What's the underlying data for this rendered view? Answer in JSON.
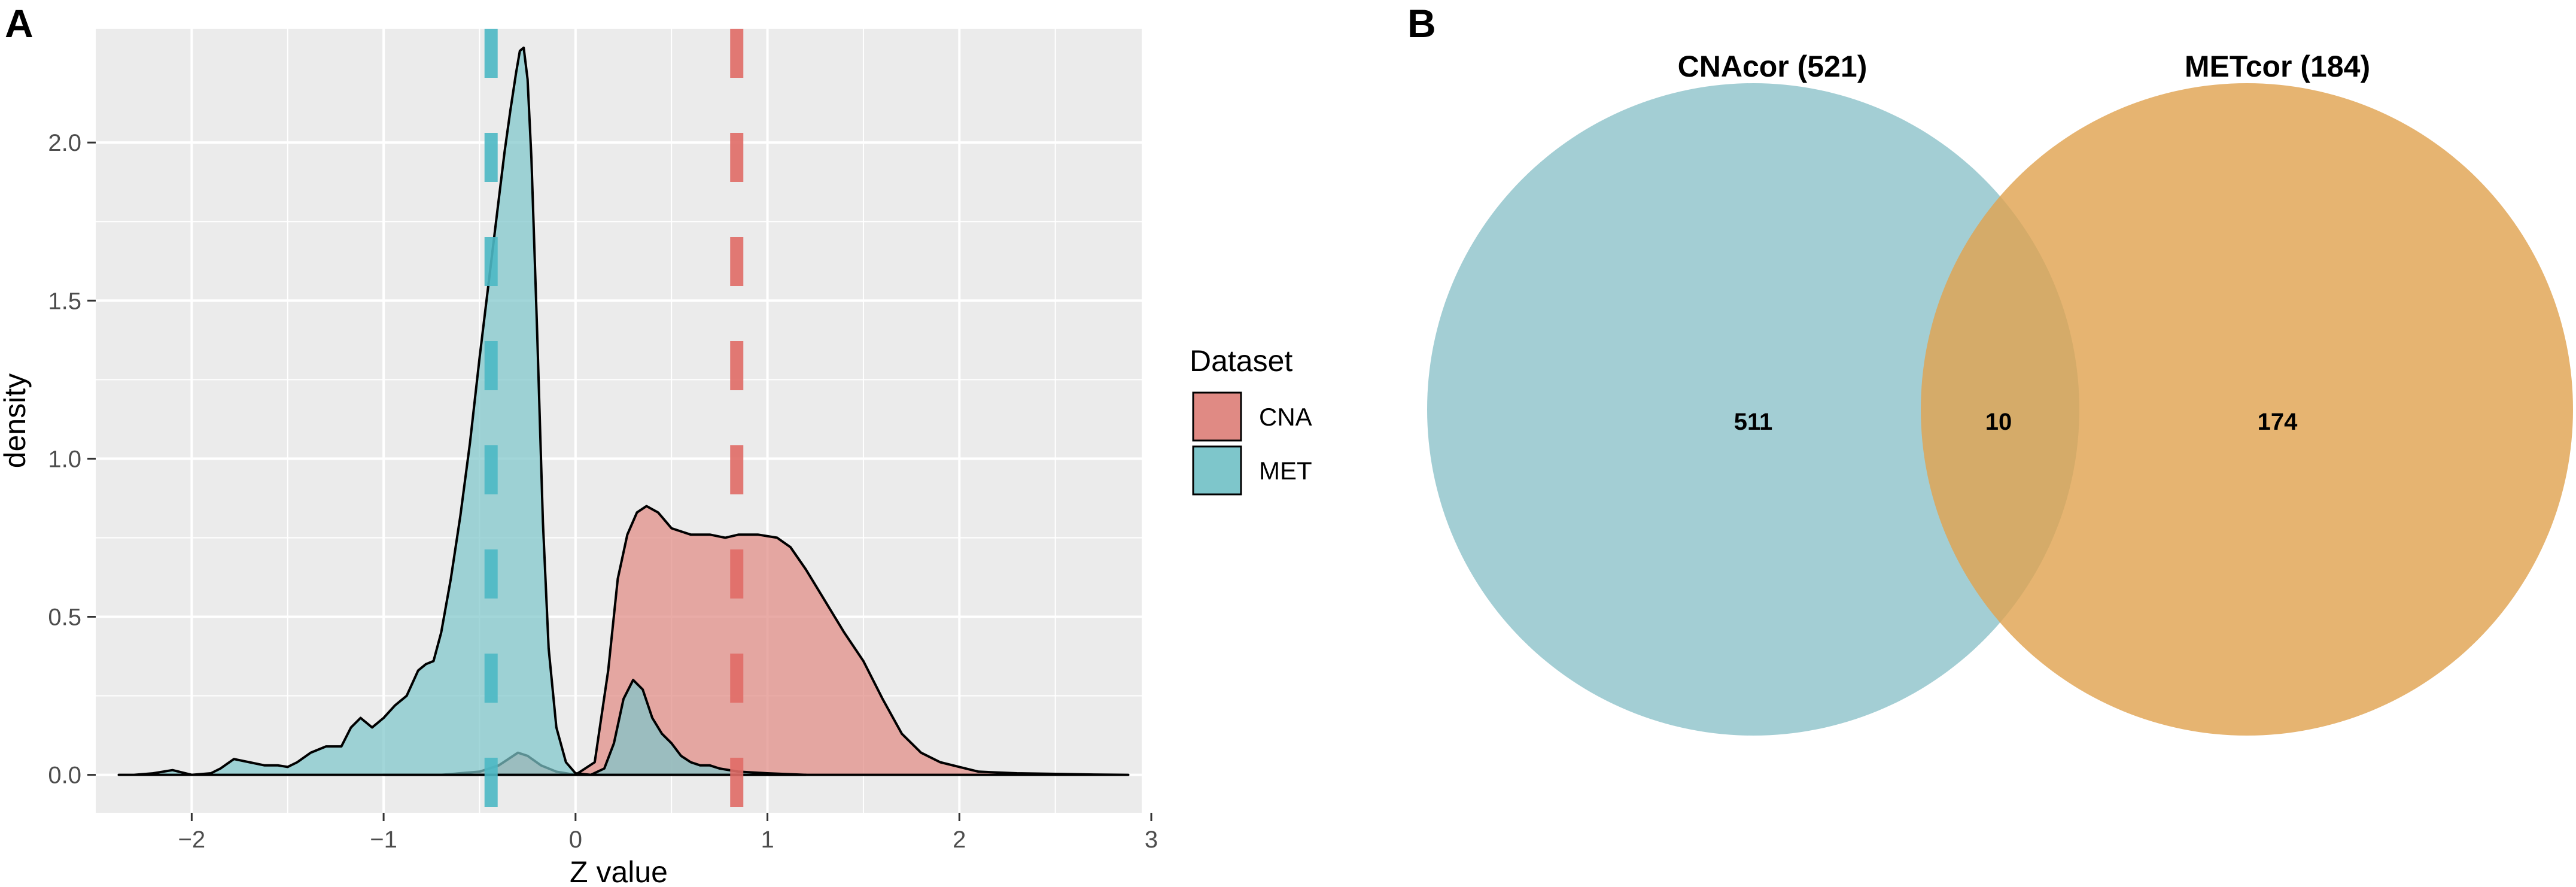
{
  "panel_labels": {
    "a": "A",
    "b": "B"
  },
  "colors": {
    "panel_bg": "#ebebeb",
    "grid": "#ffffff",
    "cna": "#e08a84",
    "met": "#7ec6cb",
    "cna_line": "#e06c66",
    "met_line": "#4db8c4",
    "venn_left": "#8fc3ca",
    "venn_right": "#e0a452"
  },
  "chart_data": [
    {
      "type": "density",
      "xlabel": "Z value",
      "ylabel": "density",
      "xlim": [
        -2.5,
        2.95
      ],
      "ylim": [
        -0.12,
        2.36
      ],
      "xticks": [
        -2,
        -1,
        0,
        1,
        2,
        3
      ],
      "yticks": [
        0.0,
        0.5,
        1.0,
        1.5,
        2.0
      ],
      "xtick_labels": [
        "−2",
        "−1",
        "0",
        "1",
        "2",
        "3"
      ],
      "ytick_labels": [
        "0.0",
        "0.5",
        "1.0",
        "1.5",
        "2.0"
      ],
      "legend": {
        "title": "Dataset",
        "entries": [
          {
            "key": "CNA",
            "label": "CNA"
          },
          {
            "key": "MET",
            "label": "MET"
          }
        ]
      },
      "series": [
        {
          "name": "CNA",
          "mean_line": 0.84,
          "points": [
            [
              -1.0,
              0.0
            ],
            [
              -0.7,
              0.0
            ],
            [
              -0.5,
              0.01
            ],
            [
              -0.4,
              0.03
            ],
            [
              -0.35,
              0.05
            ],
            [
              -0.3,
              0.07
            ],
            [
              -0.25,
              0.06
            ],
            [
              -0.18,
              0.03
            ],
            [
              -0.1,
              0.01
            ],
            [
              0.0,
              0.0
            ],
            [
              0.1,
              0.04
            ],
            [
              0.17,
              0.33
            ],
            [
              0.22,
              0.62
            ],
            [
              0.27,
              0.76
            ],
            [
              0.32,
              0.83
            ],
            [
              0.37,
              0.85
            ],
            [
              0.43,
              0.83
            ],
            [
              0.5,
              0.78
            ],
            [
              0.6,
              0.76
            ],
            [
              0.7,
              0.76
            ],
            [
              0.78,
              0.75
            ],
            [
              0.85,
              0.76
            ],
            [
              0.95,
              0.76
            ],
            [
              1.05,
              0.75
            ],
            [
              1.12,
              0.72
            ],
            [
              1.2,
              0.65
            ],
            [
              1.3,
              0.55
            ],
            [
              1.4,
              0.45
            ],
            [
              1.5,
              0.36
            ],
            [
              1.6,
              0.24
            ],
            [
              1.7,
              0.13
            ],
            [
              1.8,
              0.07
            ],
            [
              1.9,
              0.04
            ],
            [
              2.0,
              0.025
            ],
            [
              2.1,
              0.01
            ],
            [
              2.3,
              0.005
            ],
            [
              2.5,
              0.003
            ],
            [
              2.7,
              0.001
            ],
            [
              2.88,
              0.0
            ]
          ]
        },
        {
          "name": "MET",
          "mean_line": -0.44,
          "points": [
            [
              -2.38,
              0.0
            ],
            [
              -2.3,
              0.0
            ],
            [
              -2.2,
              0.005
            ],
            [
              -2.1,
              0.015
            ],
            [
              -2.0,
              0.0
            ],
            [
              -1.9,
              0.005
            ],
            [
              -1.85,
              0.02
            ],
            [
              -1.78,
              0.05
            ],
            [
              -1.7,
              0.04
            ],
            [
              -1.62,
              0.03
            ],
            [
              -1.55,
              0.03
            ],
            [
              -1.5,
              0.025
            ],
            [
              -1.45,
              0.04
            ],
            [
              -1.38,
              0.07
            ],
            [
              -1.3,
              0.09
            ],
            [
              -1.22,
              0.09
            ],
            [
              -1.17,
              0.15
            ],
            [
              -1.12,
              0.18
            ],
            [
              -1.06,
              0.15
            ],
            [
              -1.0,
              0.18
            ],
            [
              -0.94,
              0.22
            ],
            [
              -0.88,
              0.25
            ],
            [
              -0.82,
              0.33
            ],
            [
              -0.78,
              0.35
            ],
            [
              -0.74,
              0.36
            ],
            [
              -0.7,
              0.45
            ],
            [
              -0.65,
              0.62
            ],
            [
              -0.6,
              0.82
            ],
            [
              -0.55,
              1.05
            ],
            [
              -0.5,
              1.32
            ],
            [
              -0.45,
              1.57
            ],
            [
              -0.4,
              1.82
            ],
            [
              -0.37,
              1.97
            ],
            [
              -0.34,
              2.1
            ],
            [
              -0.31,
              2.22
            ],
            [
              -0.29,
              2.29
            ],
            [
              -0.27,
              2.3
            ],
            [
              -0.25,
              2.2
            ],
            [
              -0.23,
              1.95
            ],
            [
              -0.2,
              1.4
            ],
            [
              -0.17,
              0.8
            ],
            [
              -0.14,
              0.4
            ],
            [
              -0.1,
              0.15
            ],
            [
              -0.05,
              0.04
            ],
            [
              0.0,
              0.005
            ],
            [
              0.08,
              0.0
            ],
            [
              0.15,
              0.02
            ],
            [
              0.2,
              0.1
            ],
            [
              0.25,
              0.24
            ],
            [
              0.3,
              0.3
            ],
            [
              0.35,
              0.27
            ],
            [
              0.4,
              0.18
            ],
            [
              0.45,
              0.13
            ],
            [
              0.5,
              0.1
            ],
            [
              0.55,
              0.06
            ],
            [
              0.6,
              0.04
            ],
            [
              0.65,
              0.03
            ],
            [
              0.7,
              0.03
            ],
            [
              0.75,
              0.02
            ],
            [
              0.85,
              0.01
            ],
            [
              1.0,
              0.005
            ],
            [
              1.2,
              0.0
            ]
          ]
        }
      ]
    },
    {
      "type": "venn",
      "sets": [
        {
          "name": "CNAcor",
          "size": 521,
          "label": "CNAcor (521)"
        },
        {
          "name": "METcor",
          "size": 184,
          "label": "METcor (184)"
        }
      ],
      "counts": {
        "left_only": "511",
        "overlap": "10",
        "right_only": "174"
      }
    }
  ]
}
